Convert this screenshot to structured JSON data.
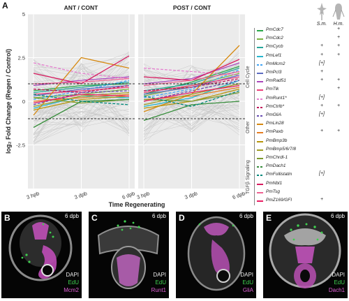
{
  "panel_a": {
    "letter": "A",
    "ylabel": "log₂ Fold Change (Regen / Control)",
    "xlabel": "Time Regenerating",
    "yticks": [
      "5",
      "2.5",
      "0",
      "-2.5"
    ],
    "xticks": [
      "3 hpb",
      "3 dpb",
      "6 dpb"
    ],
    "facets": [
      {
        "title": "ANT / CONT"
      },
      {
        "title": "POST / CONT"
      }
    ],
    "hlines": [
      1,
      -1
    ],
    "columns": [
      "S.m.",
      "H.m."
    ],
    "groups": [
      "Cell Cycle",
      "Other",
      "TGFβ Signaling"
    ],
    "legend": [
      {
        "name": "PmCdc7",
        "color": "#2aa84a",
        "sm": "",
        "hm": "+"
      },
      {
        "name": "PmCdc2",
        "color": "#7cb342",
        "sm": "",
        "hm": "+"
      },
      {
        "name": "PmCycb",
        "color": "#26a69a",
        "sm": "+",
        "hm": "+"
      },
      {
        "name": "PmLef1",
        "color": "#26b6cf",
        "sm": "+",
        "hm": "+"
      },
      {
        "name": "PmMcm2",
        "color": "#42a5f5",
        "sm": "[+]",
        "hm": ""
      },
      {
        "name": "PmPcl3",
        "color": "#5c6bc0",
        "sm": "+",
        "hm": ""
      },
      {
        "name": "PmRad51",
        "color": "#ab47bc",
        "sm": "+",
        "hm": "+"
      },
      {
        "name": "PmTlk",
        "color": "#ec407a",
        "sm": "",
        "hm": "+"
      },
      {
        "name": "PmRunt1*",
        "color": "#e57fcf",
        "sm": "[+]",
        "hm": ""
      },
      {
        "name": "PmCtrlb*",
        "color": "#c2185b",
        "sm": "+",
        "hm": "+"
      },
      {
        "name": "PmGliA",
        "color": "#6a4fb3",
        "sm": "[+]",
        "hm": ""
      },
      {
        "name": "PmLin28",
        "color": "#d68910",
        "sm": "",
        "hm": ""
      },
      {
        "name": "PmPaxb",
        "color": "#e67e22",
        "sm": "+",
        "hm": "+"
      },
      {
        "name": "PmBmp3b",
        "color": "#b7950b",
        "sm": "",
        "hm": ""
      },
      {
        "name": "PmBmp5/6/7/8",
        "color": "#9e9d24",
        "sm": "",
        "hm": ""
      },
      {
        "name": "PmChrdl-1",
        "color": "#7c9a2e",
        "sm": "",
        "hm": ""
      },
      {
        "name": "PmDach1",
        "color": "#388e3c",
        "sm": "",
        "hm": ""
      },
      {
        "name": "PmFollistatin",
        "color": "#00897b",
        "sm": "[+]",
        "hm": ""
      },
      {
        "name": "PmNbl1",
        "color": "#d81b60",
        "sm": "",
        "hm": ""
      },
      {
        "name": "PmTsg",
        "color": "#f06292",
        "sm": "",
        "hm": ""
      },
      {
        "name": "PmZ169/GFI",
        "color": "#e91e63",
        "sm": "+",
        "hm": ""
      }
    ]
  },
  "chart_data": {
    "type": "line",
    "x": [
      "3 hpb",
      "3 dpb",
      "6 dpb"
    ],
    "ylim": [
      -5,
      5
    ],
    "xlabel": "Time Regenerating",
    "ylabel": "log₂ Fold Change (Regen / Control)",
    "facets": [
      "ANT / CONT",
      "POST / CONT"
    ],
    "series": [
      {
        "name": "PmCdc7",
        "ant": [
          0.6,
          0.9,
          1.0
        ],
        "post": [
          0.4,
          1.1,
          2.0
        ]
      },
      {
        "name": "PmCdc2",
        "ant": [
          0.2,
          0.4,
          0.7
        ],
        "post": [
          0.3,
          0.9,
          1.6
        ]
      },
      {
        "name": "PmCycb",
        "ant": [
          0.5,
          0.8,
          1.1
        ],
        "post": [
          0.6,
          1.0,
          1.9
        ]
      },
      {
        "name": "PmLef1",
        "ant": [
          -0.4,
          0.3,
          0.2
        ],
        "post": [
          -0.3,
          0.2,
          1.2
        ]
      },
      {
        "name": "PmMcm2",
        "ant": [
          0.1,
          0.6,
          1.2
        ],
        "post": [
          0.2,
          0.7,
          1.8
        ]
      },
      {
        "name": "PmPcl3",
        "ant": [
          0.3,
          0.7,
          0.9
        ],
        "post": [
          0.4,
          0.8,
          1.5
        ]
      },
      {
        "name": "PmRad51",
        "ant": [
          0.9,
          1.2,
          1.4
        ],
        "post": [
          1.0,
          1.3,
          2.2
        ]
      },
      {
        "name": "PmTlk",
        "ant": [
          0.4,
          0.6,
          0.8
        ],
        "post": [
          0.5,
          0.9,
          1.4
        ]
      },
      {
        "name": "PmRunt1*",
        "ant": [
          2.2,
          1.6,
          1.3
        ],
        "post": [
          1.9,
          1.7,
          1.5
        ]
      },
      {
        "name": "PmCtrlb*",
        "ant": [
          0.7,
          0.5,
          0.9
        ],
        "post": [
          0.6,
          0.8,
          1.3
        ]
      },
      {
        "name": "PmGliA",
        "ant": [
          -0.2,
          0.5,
          0.6
        ],
        "post": [
          0.0,
          0.6,
          1.2
        ]
      },
      {
        "name": "PmLin28",
        "ant": [
          -0.8,
          2.5,
          1.9
        ],
        "post": [
          -0.6,
          0.4,
          3.2
        ]
      },
      {
        "name": "PmPaxb",
        "ant": [
          0.0,
          0.2,
          0.4
        ],
        "post": [
          0.1,
          0.3,
          0.8
        ]
      },
      {
        "name": "PmBmp3b",
        "ant": [
          -0.5,
          0.1,
          0.3
        ],
        "post": [
          -0.4,
          0.0,
          0.7
        ]
      },
      {
        "name": "PmBmp5/6/7/8",
        "ant": [
          -0.3,
          0.3,
          0.5
        ],
        "post": [
          -0.2,
          0.4,
          1.0
        ]
      },
      {
        "name": "PmChrdl-1",
        "ant": [
          0.2,
          -0.1,
          0.1
        ],
        "post": [
          0.1,
          0.0,
          0.5
        ]
      },
      {
        "name": "PmDach1",
        "ant": [
          -1.5,
          0.0,
          0.1
        ],
        "post": [
          -1.1,
          -0.2,
          0.0
        ]
      },
      {
        "name": "PmFollistatin",
        "ant": [
          0.4,
          0.0,
          -0.2
        ],
        "post": [
          0.3,
          -0.3,
          0.6
        ]
      },
      {
        "name": "PmNbl1",
        "ant": [
          1.6,
          1.0,
          2.6
        ],
        "post": [
          1.4,
          1.2,
          2.4
        ]
      },
      {
        "name": "PmTsg",
        "ant": [
          1.0,
          1.1,
          1.3
        ],
        "post": [
          0.9,
          1.2,
          1.7
        ]
      },
      {
        "name": "PmZ169/GFI",
        "ant": [
          -0.1,
          0.4,
          0.3
        ],
        "post": [
          0.0,
          0.5,
          0.9
        ]
      }
    ]
  },
  "micrographs": [
    {
      "letter": "B",
      "time": "6 dpb",
      "stains": [
        "DAPI",
        "EdU",
        "Mcm2"
      ]
    },
    {
      "letter": "C",
      "time": "6 dpb",
      "stains": [
        "DAPI",
        "EdU",
        "Runt1"
      ]
    },
    {
      "letter": "D",
      "time": "6 dpb",
      "stains": [
        "DAPI",
        "EdU",
        "GliA"
      ]
    },
    {
      "letter": "E",
      "time": "6 dpb",
      "stains": [
        "DAPI",
        "EdU",
        "Dach1"
      ]
    }
  ],
  "stain_colors": {
    "DAPI": "#e8e8e8",
    "EdU": "#3fd04f",
    "marker": "#e05fd6"
  }
}
